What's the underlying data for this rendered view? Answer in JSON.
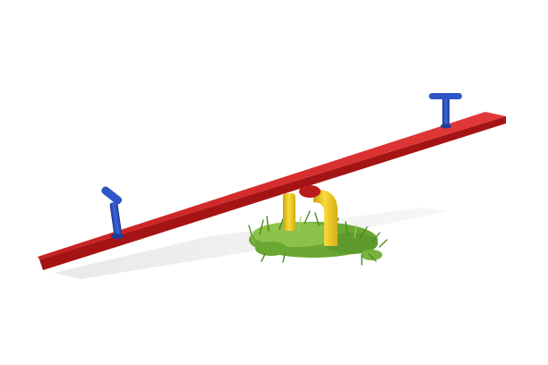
{
  "scene": {
    "subject": "seesaw",
    "colors": {
      "background": "#ffffff",
      "plank_top": "#d32323",
      "plank_side": "#a51414",
      "handle": "#2f55c8",
      "handle_dark": "#1f3c99",
      "support": "#f2cf1f",
      "support_dark": "#c9a20c",
      "grass": "#5e9a2c",
      "grass_light": "#8cc24a",
      "shadow": "#d9d9d9"
    },
    "icons": [
      "left-handle",
      "right-handle",
      "yellow-support",
      "grass-patch",
      "plank",
      "ground-shadow"
    ]
  }
}
